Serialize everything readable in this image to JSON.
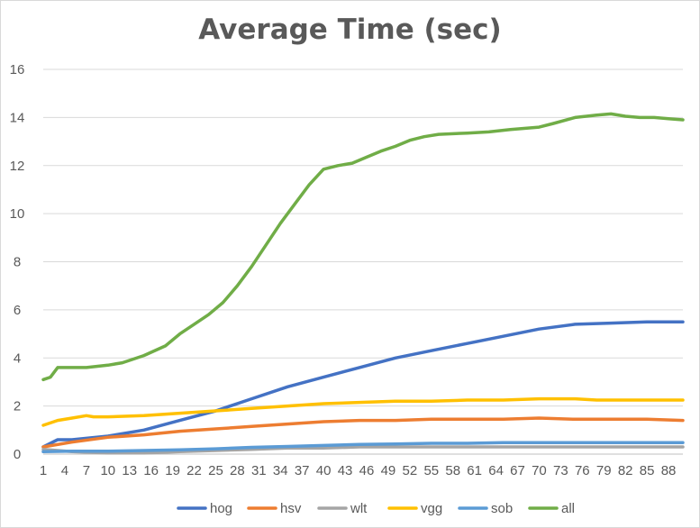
{
  "chart_data": {
    "type": "line",
    "title": "Average Time (sec)",
    "xlabel": "",
    "ylabel": "",
    "ylim": [
      0,
      16
    ],
    "yticks": [
      0,
      2,
      4,
      6,
      8,
      10,
      12,
      14,
      16
    ],
    "xticks": [
      1,
      4,
      7,
      10,
      13,
      16,
      19,
      22,
      25,
      28,
      31,
      34,
      37,
      40,
      43,
      46,
      49,
      52,
      55,
      58,
      61,
      64,
      67,
      70,
      73,
      76,
      79,
      82,
      85,
      88
    ],
    "xlim": [
      1,
      90
    ],
    "grid": "horizontal",
    "legend_position": "bottom",
    "series": [
      {
        "name": "hog",
        "color": "#4472C4",
        "points": [
          [
            1,
            0.3
          ],
          [
            3,
            0.6
          ],
          [
            5,
            0.6
          ],
          [
            10,
            0.75
          ],
          [
            15,
            1.0
          ],
          [
            20,
            1.4
          ],
          [
            25,
            1.8
          ],
          [
            30,
            2.3
          ],
          [
            35,
            2.8
          ],
          [
            40,
            3.2
          ],
          [
            45,
            3.6
          ],
          [
            50,
            4.0
          ],
          [
            55,
            4.3
          ],
          [
            60,
            4.6
          ],
          [
            65,
            4.9
          ],
          [
            70,
            5.2
          ],
          [
            75,
            5.4
          ],
          [
            80,
            5.45
          ],
          [
            85,
            5.5
          ],
          [
            90,
            5.5
          ]
        ]
      },
      {
        "name": "hsv",
        "color": "#ED7D31",
        "points": [
          [
            1,
            0.3
          ],
          [
            5,
            0.5
          ],
          [
            10,
            0.7
          ],
          [
            15,
            0.8
          ],
          [
            20,
            0.95
          ],
          [
            25,
            1.05
          ],
          [
            30,
            1.15
          ],
          [
            35,
            1.25
          ],
          [
            40,
            1.35
          ],
          [
            45,
            1.4
          ],
          [
            50,
            1.4
          ],
          [
            55,
            1.45
          ],
          [
            60,
            1.45
          ],
          [
            65,
            1.45
          ],
          [
            70,
            1.5
          ],
          [
            75,
            1.45
          ],
          [
            80,
            1.45
          ],
          [
            85,
            1.45
          ],
          [
            90,
            1.4
          ]
        ]
      },
      {
        "name": "wlt",
        "color": "#A5A5A5",
        "points": [
          [
            1,
            0.2
          ],
          [
            5,
            0.1
          ],
          [
            10,
            0.05
          ],
          [
            15,
            0.05
          ],
          [
            20,
            0.1
          ],
          [
            25,
            0.15
          ],
          [
            30,
            0.2
          ],
          [
            35,
            0.25
          ],
          [
            40,
            0.25
          ],
          [
            45,
            0.3
          ],
          [
            50,
            0.3
          ],
          [
            55,
            0.3
          ],
          [
            60,
            0.3
          ],
          [
            65,
            0.3
          ],
          [
            70,
            0.3
          ],
          [
            75,
            0.3
          ],
          [
            80,
            0.3
          ],
          [
            85,
            0.3
          ],
          [
            90,
            0.3
          ]
        ]
      },
      {
        "name": "vgg",
        "color": "#FFC000",
        "points": [
          [
            1,
            1.2
          ],
          [
            3,
            1.4
          ],
          [
            5,
            1.5
          ],
          [
            7,
            1.6
          ],
          [
            8,
            1.55
          ],
          [
            10,
            1.55
          ],
          [
            15,
            1.6
          ],
          [
            20,
            1.7
          ],
          [
            25,
            1.8
          ],
          [
            30,
            1.9
          ],
          [
            35,
            2.0
          ],
          [
            40,
            2.1
          ],
          [
            45,
            2.15
          ],
          [
            50,
            2.2
          ],
          [
            55,
            2.2
          ],
          [
            60,
            2.25
          ],
          [
            65,
            2.25
          ],
          [
            70,
            2.3
          ],
          [
            75,
            2.3
          ],
          [
            78,
            2.25
          ],
          [
            85,
            2.25
          ],
          [
            90,
            2.25
          ]
        ]
      },
      {
        "name": "sob",
        "color": "#5B9BD5",
        "points": [
          [
            1,
            0.1
          ],
          [
            5,
            0.12
          ],
          [
            10,
            0.12
          ],
          [
            15,
            0.15
          ],
          [
            20,
            0.18
          ],
          [
            25,
            0.22
          ],
          [
            30,
            0.28
          ],
          [
            35,
            0.32
          ],
          [
            40,
            0.36
          ],
          [
            45,
            0.4
          ],
          [
            50,
            0.42
          ],
          [
            55,
            0.45
          ],
          [
            60,
            0.45
          ],
          [
            65,
            0.48
          ],
          [
            70,
            0.48
          ],
          [
            75,
            0.48
          ],
          [
            80,
            0.48
          ],
          [
            85,
            0.48
          ],
          [
            90,
            0.48
          ]
        ]
      },
      {
        "name": "all",
        "color": "#70AD47",
        "points": [
          [
            1,
            3.1
          ],
          [
            2,
            3.2
          ],
          [
            3,
            3.6
          ],
          [
            5,
            3.6
          ],
          [
            7,
            3.6
          ],
          [
            10,
            3.7
          ],
          [
            12,
            3.8
          ],
          [
            15,
            4.1
          ],
          [
            18,
            4.5
          ],
          [
            20,
            5.0
          ],
          [
            22,
            5.4
          ],
          [
            24,
            5.8
          ],
          [
            26,
            6.3
          ],
          [
            28,
            7.0
          ],
          [
            30,
            7.8
          ],
          [
            32,
            8.7
          ],
          [
            34,
            9.6
          ],
          [
            36,
            10.4
          ],
          [
            38,
            11.2
          ],
          [
            40,
            11.85
          ],
          [
            42,
            12.0
          ],
          [
            44,
            12.1
          ],
          [
            46,
            12.35
          ],
          [
            48,
            12.6
          ],
          [
            50,
            12.8
          ],
          [
            52,
            13.05
          ],
          [
            54,
            13.2
          ],
          [
            56,
            13.3
          ],
          [
            60,
            13.35
          ],
          [
            63,
            13.4
          ],
          [
            66,
            13.5
          ],
          [
            70,
            13.6
          ],
          [
            72,
            13.75
          ],
          [
            75,
            14.0
          ],
          [
            78,
            14.1
          ],
          [
            80,
            14.15
          ],
          [
            82,
            14.05
          ],
          [
            84,
            14.0
          ],
          [
            86,
            14.0
          ],
          [
            88,
            13.95
          ],
          [
            90,
            13.9
          ]
        ]
      }
    ]
  }
}
